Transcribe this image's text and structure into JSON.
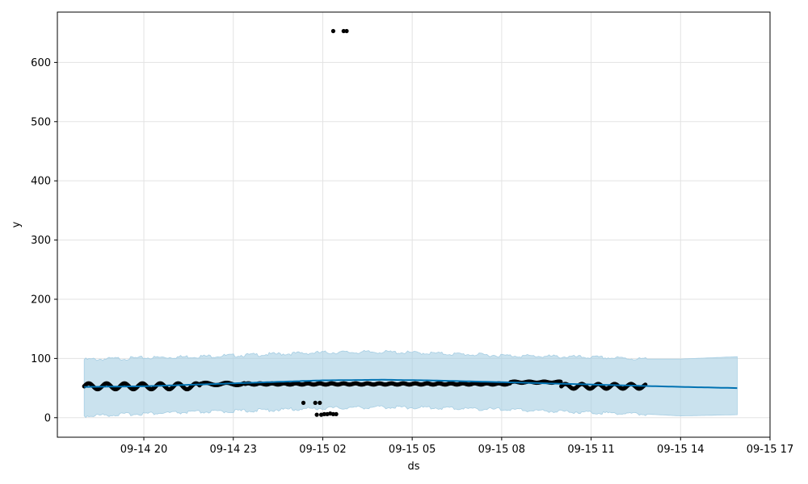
{
  "chart_data": {
    "type": "line",
    "title": "",
    "xlabel": "ds",
    "ylabel": "y",
    "x_tick_labels": [
      "09-14 20",
      "09-14 23",
      "09-15 02",
      "09-15 05",
      "09-15 08",
      "09-15 11",
      "09-15 14",
      "09-15 17"
    ],
    "x_tick_hours": [
      20,
      23,
      26,
      29,
      32,
      35,
      38,
      41
    ],
    "y_ticks": [
      0,
      100,
      200,
      300,
      400,
      500,
      600
    ],
    "xlim_hours": [
      17.1,
      41.0
    ],
    "ylim": [
      -33,
      685
    ],
    "grid": true,
    "history_end_hour": 36.85,
    "forecast_end_hour": 39.9,
    "forecast": {
      "name": "yhat",
      "color": "#0072B2",
      "hours": [
        18.0,
        20.0,
        23.0,
        26.0,
        28.0,
        29.5,
        32.0,
        35.0,
        38.0,
        39.9
      ],
      "values": [
        52,
        53,
        58,
        63,
        64,
        63,
        60,
        56,
        52,
        50
      ]
    },
    "interval": {
      "color": "#a6cee3",
      "hours": [
        18.0,
        20.0,
        23.0,
        26.0,
        28.0,
        29.5,
        32.0,
        35.0,
        36.85,
        38.0,
        39.9
      ],
      "upper": [
        98,
        101,
        105,
        110,
        111,
        109,
        105,
        102,
        99,
        99,
        103
      ],
      "lower": [
        3,
        7,
        11,
        16,
        18,
        17,
        14,
        9,
        6,
        3,
        5
      ]
    },
    "observed": {
      "name": "y",
      "color": "#000000",
      "segments": [
        {
          "start": 18.0,
          "end": 21.9,
          "base": 53,
          "amp": 5,
          "period": 0.6
        },
        {
          "start": 21.9,
          "end": 23.4,
          "base": 57,
          "amp": 2,
          "period": 0.7
        },
        {
          "start": 23.4,
          "end": 32.3,
          "base": 57,
          "amp": 1,
          "period": 0.4
        },
        {
          "start": 32.3,
          "end": 34.0,
          "base": 60,
          "amp": 1,
          "period": 0.5
        },
        {
          "start": 34.0,
          "end": 36.85,
          "base": 53,
          "amp": 4,
          "period": 0.55
        }
      ],
      "outliers": [
        {
          "x": 25.35,
          "y": 25
        },
        {
          "x": 25.75,
          "y": 25
        },
        {
          "x": 25.9,
          "y": 25
        },
        {
          "x": 25.8,
          "y": 5
        },
        {
          "x": 25.95,
          "y": 5
        },
        {
          "x": 26.05,
          "y": 6
        },
        {
          "x": 26.15,
          "y": 6
        },
        {
          "x": 26.25,
          "y": 7
        },
        {
          "x": 26.35,
          "y": 6
        },
        {
          "x": 26.45,
          "y": 6
        },
        {
          "x": 26.35,
          "y": 653
        },
        {
          "x": 26.7,
          "y": 653
        },
        {
          "x": 26.8,
          "y": 653
        }
      ]
    }
  }
}
